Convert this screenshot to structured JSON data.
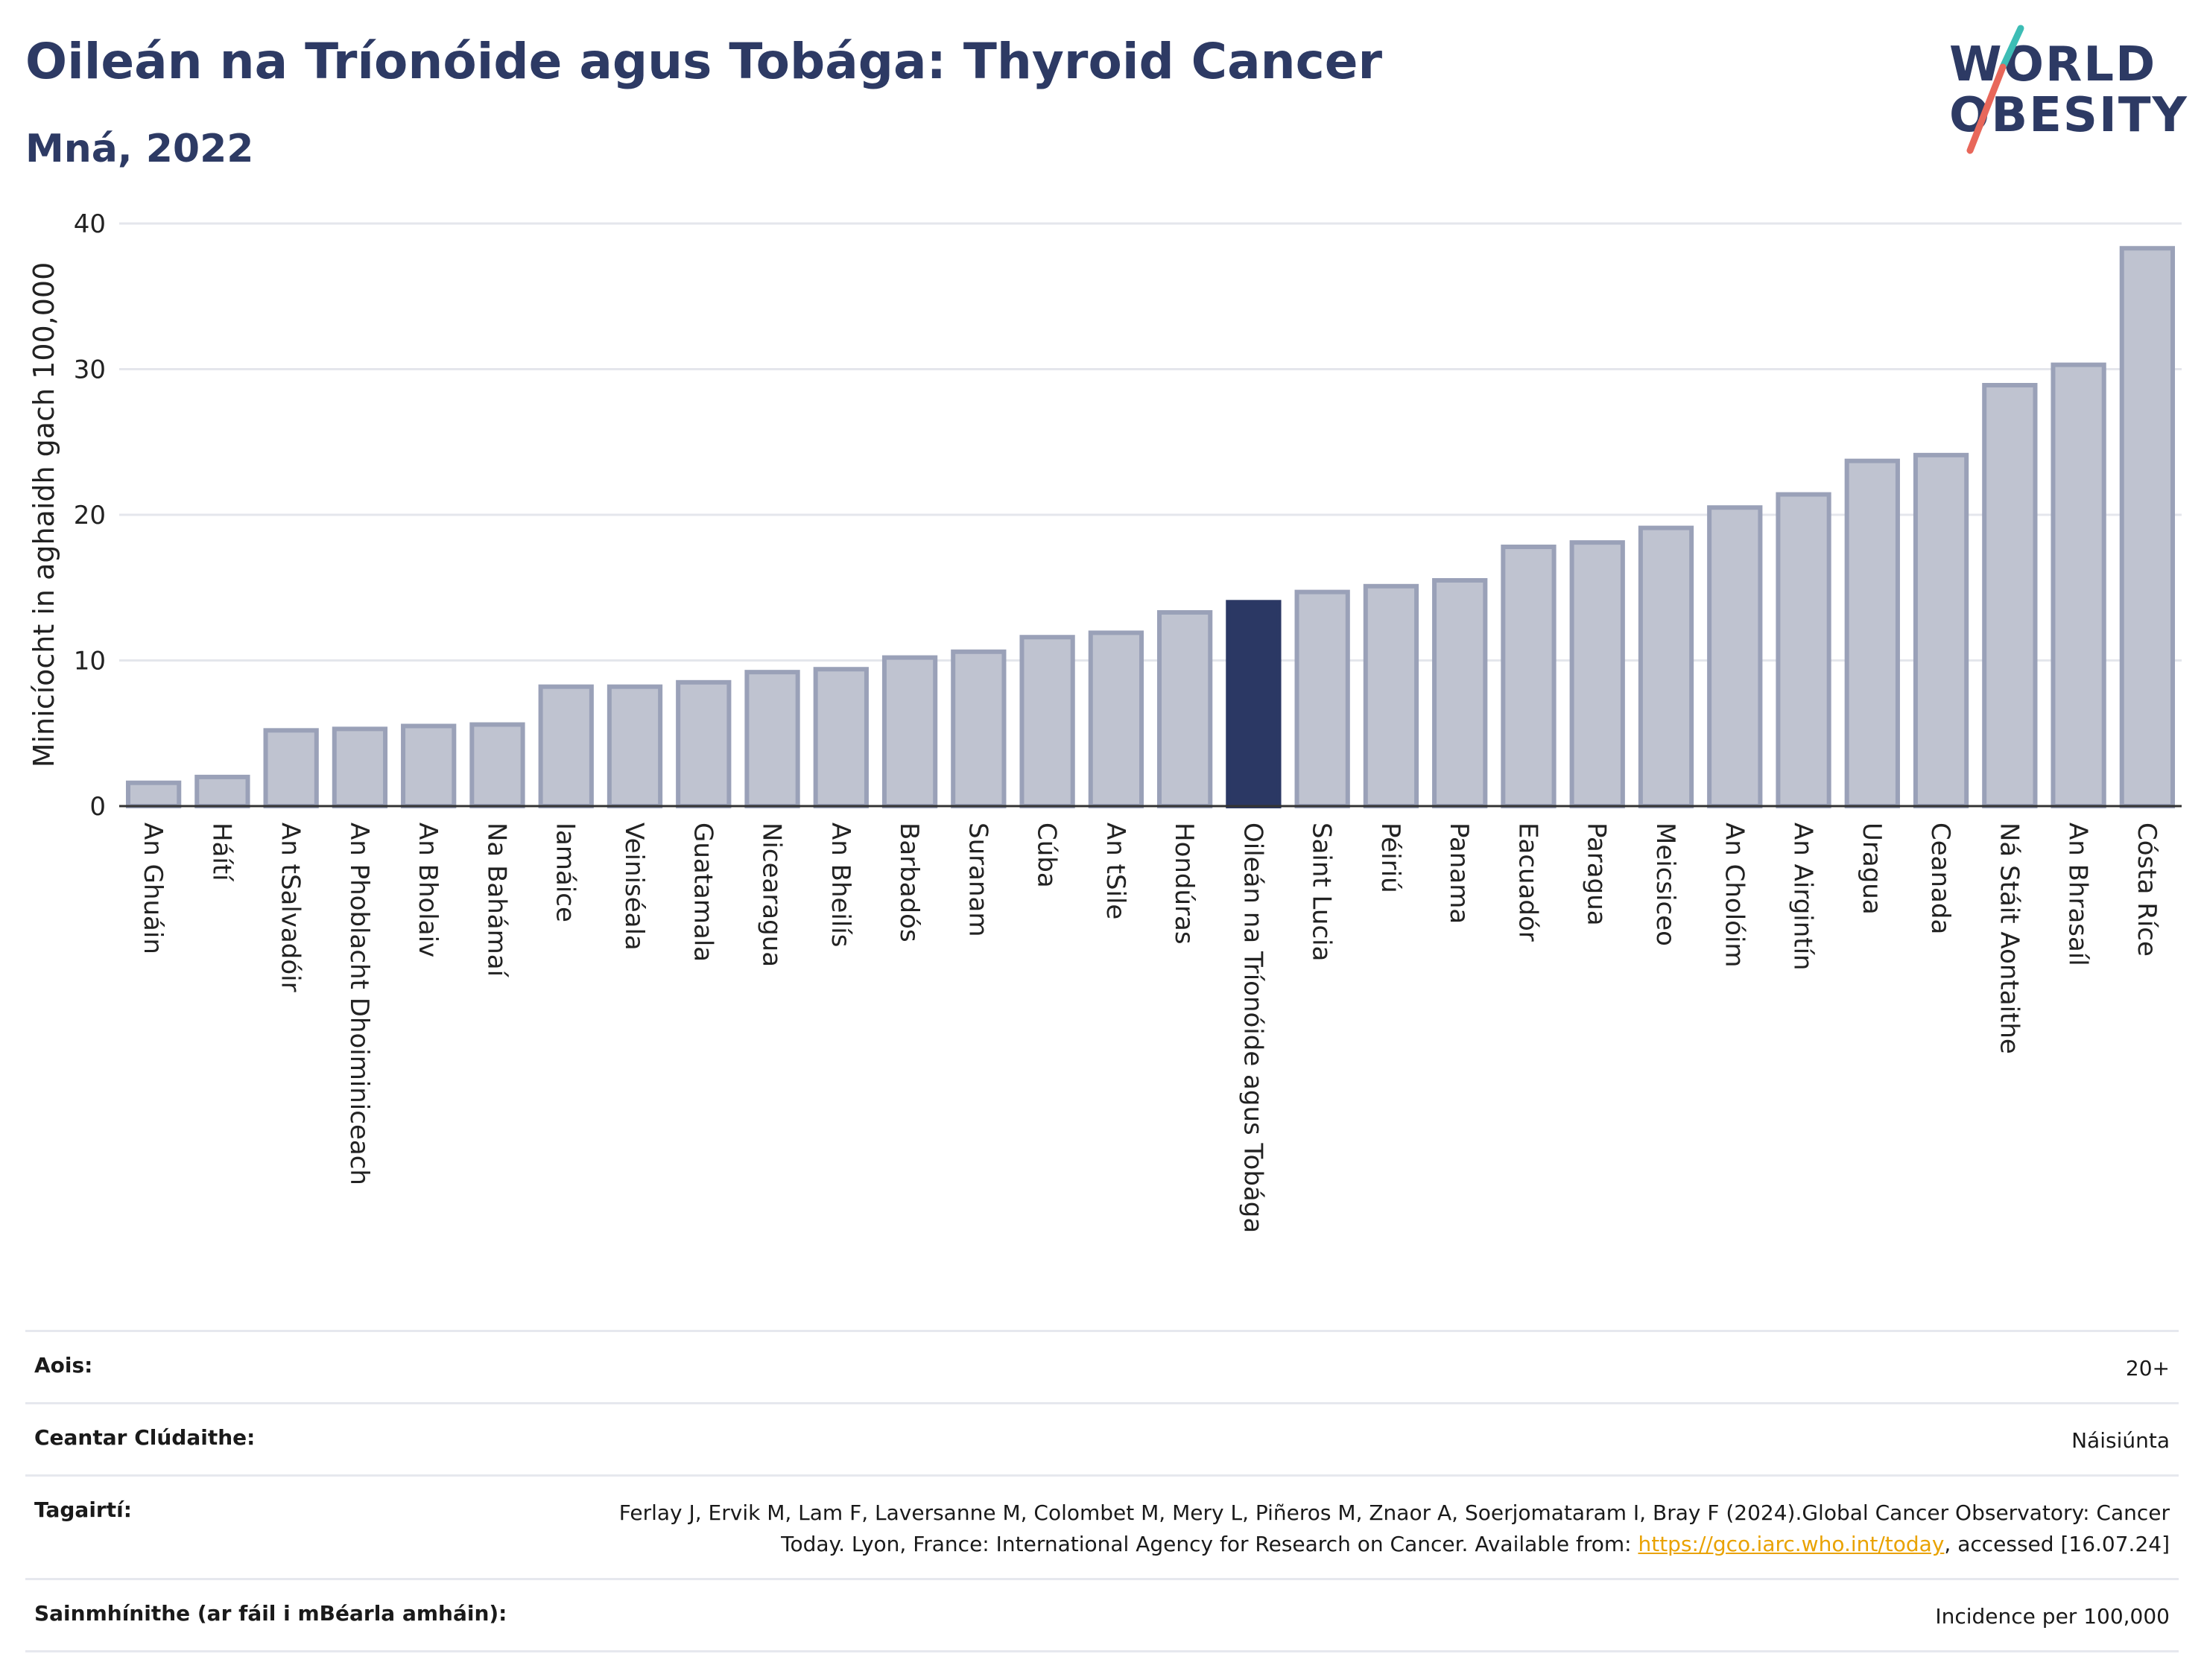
{
  "header": {
    "title": "Oileán na Tríonóide agus Tobága: Thyroid Cancer",
    "subtitle": "Mná, 2022"
  },
  "logo": {
    "line1": "WORLD",
    "line2": "OBESITY",
    "colors": {
      "text": "#2d3a64",
      "slash_top": "#3dbdb5",
      "slash_bottom": "#e8675a"
    }
  },
  "colors": {
    "bar_fill": "#bfc3d0",
    "bar_stroke": "#9aa1b8",
    "highlight": "#2b3864",
    "grid": "#e4e6ec",
    "axis": "#333333"
  },
  "chart_data": {
    "type": "bar",
    "ylabel": "Minicíocht in aghaidh gach 100,000",
    "ylim": [
      0,
      40
    ],
    "yticks": [
      0,
      10,
      20,
      30,
      40
    ],
    "grid": true,
    "highlight": "Oileán na Tríonóide agus Tobága",
    "categories": [
      "An Ghuáin",
      "Háítí",
      "An tSalvadóir",
      "An Phoblacht Dhoiminiceach",
      "An Bholaiv",
      "Na Bahámaí",
      "Iamáice",
      "Veiniséala",
      "Guatamala",
      "Nicearagua",
      "An Bheilís",
      "Barbadós",
      "Suranam",
      "Cúba",
      "An tSile",
      "Hondúras",
      "Oileán na Tríonóide agus Tobága",
      "Saint Lucia",
      "Péiriú",
      "Panama",
      "Eacuadór",
      "Paragua",
      "Meicsiceo",
      "An Cholóim",
      "An Airgintín",
      "Uragua",
      "Ceanada",
      "Ná Stáit Aontaithe",
      "An Bhrasaíl",
      "Cósta Ríce"
    ],
    "values": [
      1.6,
      2.0,
      5.2,
      5.3,
      5.5,
      5.6,
      8.2,
      8.2,
      8.5,
      9.2,
      9.4,
      10.2,
      10.6,
      11.6,
      11.9,
      13.3,
      14.0,
      14.7,
      15.1,
      15.5,
      17.8,
      18.1,
      19.1,
      20.5,
      21.4,
      23.7,
      24.1,
      28.9,
      30.3,
      38.3
    ]
  },
  "meta": {
    "rows": [
      {
        "label": "Aois:",
        "value": "20+"
      },
      {
        "label": "Ceantar Clúdaithe:",
        "value": "Náisiúnta"
      },
      {
        "label": "Tagairtí:",
        "value_pre": "Ferlay J, Ervik M, Lam F, Laversanne M, Colombet M, Mery L, Piñeros M, Znaor A, Soerjomataram I, Bray F (2024).Global Cancer Observatory: Cancer Today. Lyon, France: International Agency for Research on Cancer. Available from: ",
        "link": "https://gco.iarc.who.int/today",
        "value_post": ", accessed [16.07.24]"
      },
      {
        "label": "Sainmhínithe (ar fáil i mBéarla amháin):",
        "value": "Incidence per 100,000"
      }
    ]
  }
}
